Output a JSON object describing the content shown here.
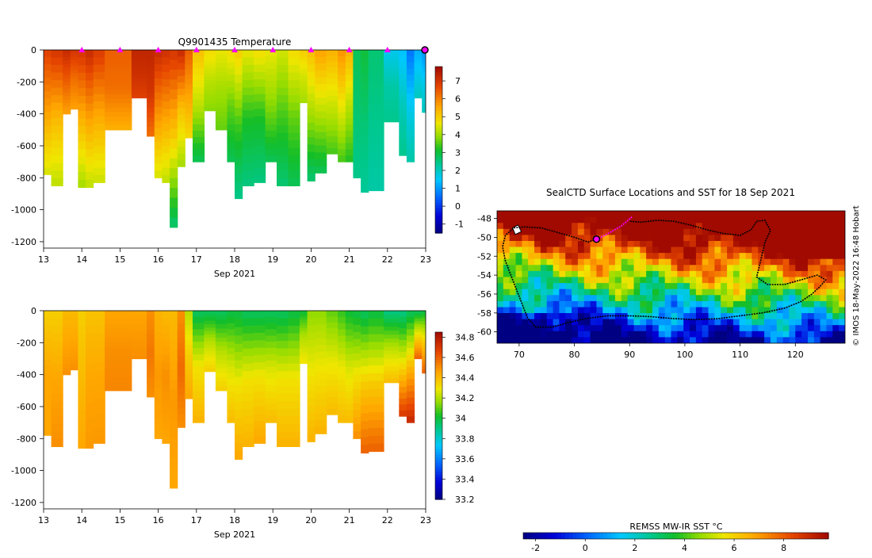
{
  "chart_data": [
    {
      "id": "temperature",
      "type": "heatmap",
      "title": "Q9901435  Temperature",
      "x_ticks": [
        "13",
        "14",
        "15",
        "16",
        "17",
        "18",
        "19",
        "20",
        "21",
        "22",
        "23"
      ],
      "x_label": "Sep 2021",
      "xlim": [
        13,
        23
      ],
      "y_ticks": [
        "0",
        "-200",
        "-400",
        "-600",
        "-800",
        "-1000",
        "-1200"
      ],
      "ylim": [
        -1240,
        0
      ],
      "colorbar": {
        "ticks": [
          "-1",
          "0",
          "1",
          "2",
          "3",
          "4",
          "5",
          "6",
          "7"
        ],
        "range": [
          -1.5,
          7.8
        ]
      },
      "profile_markers": [
        14,
        15,
        16,
        17,
        18,
        19,
        20,
        21,
        22
      ],
      "current_marker": 23,
      "profiles": [
        {
          "x": 13.0,
          "bottom": -780,
          "top_val": 6.8,
          "mid_val": 5.6,
          "bot_val": 4.4
        },
        {
          "x": 13.2,
          "bottom": -850,
          "top_val": 7.0,
          "mid_val": 5.3,
          "bot_val": 4.2
        },
        {
          "x": 13.5,
          "bottom": -400,
          "top_val": 7.2,
          "mid_val": 6.4,
          "bot_val": 5.6
        },
        {
          "x": 13.7,
          "bottom": -370,
          "top_val": 7.0,
          "mid_val": 6.2,
          "bot_val": 5.6
        },
        {
          "x": 13.9,
          "bottom": -860,
          "top_val": 7.0,
          "mid_val": 5.4,
          "bot_val": 4.0
        },
        {
          "x": 14.1,
          "bottom": -860,
          "top_val": 7.2,
          "mid_val": 5.6,
          "bot_val": 4.2
        },
        {
          "x": 14.3,
          "bottom": -830,
          "top_val": 6.9,
          "mid_val": 5.5,
          "bot_val": 4.3
        },
        {
          "x": 14.6,
          "bottom": -500,
          "top_val": 6.4,
          "mid_val": 6.2,
          "bot_val": 5.4
        },
        {
          "x": 15.3,
          "bottom": -300,
          "top_val": 7.3,
          "mid_val": 7.1,
          "bot_val": 6.8
        },
        {
          "x": 15.7,
          "bottom": -540,
          "top_val": 7.3,
          "mid_val": 7.0,
          "bot_val": 6.2
        },
        {
          "x": 15.9,
          "bottom": -800,
          "top_val": 7.2,
          "mid_val": 5.8,
          "bot_val": 4.4
        },
        {
          "x": 16.1,
          "bottom": -830,
          "top_val": 7.1,
          "mid_val": 5.6,
          "bot_val": 4.2
        },
        {
          "x": 16.3,
          "bottom": -1110,
          "top_val": 7.0,
          "mid_val": 5.0,
          "bot_val": 2.6
        },
        {
          "x": 16.5,
          "bottom": -730,
          "top_val": 7.2,
          "mid_val": 5.2,
          "bot_val": 4.0
        },
        {
          "x": 16.7,
          "bottom": -550,
          "top_val": 6.4,
          "mid_val": 5.6,
          "bot_val": 4.8
        },
        {
          "x": 16.9,
          "bottom": -700,
          "top_val": 5.2,
          "mid_val": 4.2,
          "bot_val": 2.8
        },
        {
          "x": 17.2,
          "bottom": -380,
          "top_val": 4.8,
          "mid_val": 4.2,
          "bot_val": 3.8
        },
        {
          "x": 17.5,
          "bottom": -500,
          "top_val": 4.6,
          "mid_val": 4.0,
          "bot_val": 3.6
        },
        {
          "x": 17.8,
          "bottom": -700,
          "top_val": 4.8,
          "mid_val": 3.6,
          "bot_val": 2.8
        },
        {
          "x": 18.0,
          "bottom": -930,
          "top_val": 5.0,
          "mid_val": 3.4,
          "bot_val": 2.4
        },
        {
          "x": 18.2,
          "bottom": -850,
          "top_val": 4.6,
          "mid_val": 3.2,
          "bot_val": 2.5
        },
        {
          "x": 18.5,
          "bottom": -830,
          "top_val": 4.8,
          "mid_val": 3.2,
          "bot_val": 2.5
        },
        {
          "x": 18.8,
          "bottom": -700,
          "top_val": 4.6,
          "mid_val": 3.8,
          "bot_val": 2.8
        },
        {
          "x": 19.1,
          "bottom": -850,
          "top_val": 4.4,
          "mid_val": 3.4,
          "bot_val": 2.6
        },
        {
          "x": 19.4,
          "bottom": -850,
          "top_val": 4.8,
          "mid_val": 3.6,
          "bot_val": 2.8
        },
        {
          "x": 19.7,
          "bottom": -330,
          "top_val": 5.0,
          "mid_val": 4.4,
          "bot_val": 4.0
        },
        {
          "x": 19.9,
          "bottom": -820,
          "top_val": 5.2,
          "mid_val": 4.0,
          "bot_val": 2.6
        },
        {
          "x": 20.1,
          "bottom": -770,
          "top_val": 5.6,
          "mid_val": 4.2,
          "bot_val": 2.8
        },
        {
          "x": 20.4,
          "bottom": -650,
          "top_val": 5.4,
          "mid_val": 4.4,
          "bot_val": 3.4
        },
        {
          "x": 20.7,
          "bottom": -700,
          "top_val": 5.8,
          "mid_val": 4.6,
          "bot_val": 3.4
        },
        {
          "x": 20.9,
          "bottom": -700,
          "top_val": 5.4,
          "mid_val": 4.2,
          "bot_val": 3.2
        },
        {
          "x": 21.1,
          "bottom": -800,
          "top_val": 2.8,
          "mid_val": 2.6,
          "bot_val": 2.4
        },
        {
          "x": 21.3,
          "bottom": -890,
          "top_val": 3.0,
          "mid_val": 2.6,
          "bot_val": 2.3
        },
        {
          "x": 21.5,
          "bottom": -880,
          "top_val": 2.6,
          "mid_val": 2.4,
          "bot_val": 2.2
        },
        {
          "x": 21.9,
          "bottom": -450,
          "top_val": 1.6,
          "mid_val": 2.2,
          "bot_val": 2.4
        },
        {
          "x": 22.3,
          "bottom": -660,
          "top_val": 1.4,
          "mid_val": 2.0,
          "bot_val": 2.4
        },
        {
          "x": 22.5,
          "bottom": -700,
          "top_val": 0.6,
          "mid_val": 1.6,
          "bot_val": 2.2
        },
        {
          "x": 22.7,
          "bottom": -300,
          "top_val": 1.2,
          "mid_val": 1.6,
          "bot_val": 2.0
        },
        {
          "x": 22.9,
          "bottom": -390,
          "top_val": 0.9,
          "mid_val": 1.6,
          "bot_val": 2.0
        }
      ]
    },
    {
      "id": "salinity",
      "type": "heatmap",
      "title": "",
      "x_ticks": [
        "13",
        "14",
        "15",
        "16",
        "17",
        "18",
        "19",
        "20",
        "21",
        "22",
        "23"
      ],
      "x_label": "Sep 2021",
      "xlim": [
        13,
        23
      ],
      "y_ticks": [
        "0",
        "-200",
        "-400",
        "-600",
        "-800",
        "-1000",
        "-1200"
      ],
      "ylim": [
        -1240,
        0
      ],
      "colorbar": {
        "ticks": [
          "33.2",
          "33.4",
          "33.6",
          "33.8",
          "34",
          "34.2",
          "34.4",
          "34.6",
          "34.8"
        ],
        "range": [
          33.2,
          34.85
        ]
      },
      "profiles": [
        {
          "x": 13.0,
          "bottom": -780,
          "top_val": 34.35,
          "mid_val": 34.45,
          "bot_val": 34.45
        },
        {
          "x": 13.2,
          "bottom": -850,
          "top_val": 34.35,
          "mid_val": 34.45,
          "bot_val": 34.5
        },
        {
          "x": 13.5,
          "bottom": -400,
          "top_val": 34.4,
          "mid_val": 34.45,
          "bot_val": 34.5
        },
        {
          "x": 13.7,
          "bottom": -370,
          "top_val": 34.4,
          "mid_val": 34.45,
          "bot_val": 34.5
        },
        {
          "x": 13.9,
          "bottom": -860,
          "top_val": 34.35,
          "mid_val": 34.4,
          "bot_val": 34.45
        },
        {
          "x": 14.1,
          "bottom": -860,
          "top_val": 34.38,
          "mid_val": 34.45,
          "bot_val": 34.48
        },
        {
          "x": 14.3,
          "bottom": -830,
          "top_val": 34.38,
          "mid_val": 34.45,
          "bot_val": 34.48
        },
        {
          "x": 14.6,
          "bottom": -500,
          "top_val": 34.45,
          "mid_val": 34.5,
          "bot_val": 34.52
        },
        {
          "x": 15.3,
          "bottom": -300,
          "top_val": 34.45,
          "mid_val": 34.48,
          "bot_val": 34.5
        },
        {
          "x": 15.7,
          "bottom": -540,
          "top_val": 34.5,
          "mid_val": 34.55,
          "bot_val": 34.5
        },
        {
          "x": 15.9,
          "bottom": -800,
          "top_val": 34.42,
          "mid_val": 34.48,
          "bot_val": 34.45
        },
        {
          "x": 16.1,
          "bottom": -830,
          "top_val": 34.4,
          "mid_val": 34.5,
          "bot_val": 34.45
        },
        {
          "x": 16.3,
          "bottom": -1110,
          "top_val": 34.4,
          "mid_val": 34.48,
          "bot_val": 34.45
        },
        {
          "x": 16.5,
          "bottom": -730,
          "top_val": 34.5,
          "mid_val": 34.58,
          "bot_val": 34.5
        },
        {
          "x": 16.7,
          "bottom": -550,
          "top_val": 34.2,
          "mid_val": 34.35,
          "bot_val": 34.45
        },
        {
          "x": 16.9,
          "bottom": -700,
          "top_val": 33.95,
          "mid_val": 34.3,
          "bot_val": 34.42
        },
        {
          "x": 17.2,
          "bottom": -380,
          "top_val": 33.95,
          "mid_val": 34.2,
          "bot_val": 34.35
        },
        {
          "x": 17.5,
          "bottom": -500,
          "top_val": 33.95,
          "mid_val": 34.2,
          "bot_val": 34.35
        },
        {
          "x": 17.8,
          "bottom": -700,
          "top_val": 33.98,
          "mid_val": 34.25,
          "bot_val": 34.4
        },
        {
          "x": 18.0,
          "bottom": -930,
          "top_val": 33.98,
          "mid_val": 34.3,
          "bot_val": 34.45
        },
        {
          "x": 18.2,
          "bottom": -850,
          "top_val": 33.95,
          "mid_val": 34.3,
          "bot_val": 34.42
        },
        {
          "x": 18.5,
          "bottom": -830,
          "top_val": 33.95,
          "mid_val": 34.3,
          "bot_val": 34.45
        },
        {
          "x": 18.8,
          "bottom": -700,
          "top_val": 33.95,
          "mid_val": 34.25,
          "bot_val": 34.4
        },
        {
          "x": 19.1,
          "bottom": -850,
          "top_val": 33.95,
          "mid_val": 34.3,
          "bot_val": 34.42
        },
        {
          "x": 19.4,
          "bottom": -850,
          "top_val": 33.98,
          "mid_val": 34.3,
          "bot_val": 34.42
        },
        {
          "x": 19.7,
          "bottom": -330,
          "top_val": 34.0,
          "mid_val": 34.2,
          "bot_val": 34.3
        },
        {
          "x": 19.9,
          "bottom": -820,
          "top_val": 34.15,
          "mid_val": 34.3,
          "bot_val": 34.42
        },
        {
          "x": 20.1,
          "bottom": -770,
          "top_val": 34.15,
          "mid_val": 34.3,
          "bot_val": 34.42
        },
        {
          "x": 20.4,
          "bottom": -650,
          "top_val": 34.1,
          "mid_val": 34.28,
          "bot_val": 34.4
        },
        {
          "x": 20.7,
          "bottom": -700,
          "top_val": 34.05,
          "mid_val": 34.28,
          "bot_val": 34.4
        },
        {
          "x": 20.9,
          "bottom": -700,
          "top_val": 34.0,
          "mid_val": 34.25,
          "bot_val": 34.4
        },
        {
          "x": 21.1,
          "bottom": -800,
          "top_val": 33.98,
          "mid_val": 34.3,
          "bot_val": 34.5
        },
        {
          "x": 21.3,
          "bottom": -890,
          "top_val": 33.95,
          "mid_val": 34.35,
          "bot_val": 34.6
        },
        {
          "x": 21.5,
          "bottom": -880,
          "top_val": 33.98,
          "mid_val": 34.35,
          "bot_val": 34.6
        },
        {
          "x": 21.9,
          "bottom": -450,
          "top_val": 33.9,
          "mid_val": 34.2,
          "bot_val": 34.4
        },
        {
          "x": 22.3,
          "bottom": -660,
          "top_val": 33.9,
          "mid_val": 34.3,
          "bot_val": 34.7
        },
        {
          "x": 22.5,
          "bottom": -700,
          "top_val": 33.95,
          "mid_val": 34.4,
          "bot_val": 34.75
        },
        {
          "x": 22.7,
          "bottom": -300,
          "top_val": 33.95,
          "mid_val": 34.3,
          "bot_val": 34.6
        },
        {
          "x": 22.9,
          "bottom": -390,
          "top_val": 33.98,
          "mid_val": 34.35,
          "bot_val": 34.6
        }
      ]
    },
    {
      "id": "sst-map",
      "type": "heatmap",
      "title": "SealCTD Surface Locations and SST for 18 Sep 2021",
      "x_ticks": [
        "70",
        "80",
        "90",
        "100",
        "110",
        "120"
      ],
      "xlim": [
        66,
        129
      ],
      "y_ticks": [
        "-48",
        "-50",
        "-52",
        "-54",
        "-56",
        "-58",
        "-60"
      ],
      "ylim": [
        -61.2,
        -47.2
      ],
      "colorbar": {
        "label": "REMSS MW-IR SST °C",
        "ticks": [
          "-2",
          "0",
          "2",
          "4",
          "6",
          "8"
        ],
        "range": [
          -2.5,
          9.8
        ]
      },
      "side_note": "© IMOS 18-May-2022 16:48 Hobart",
      "track": [
        [
          84,
          -50.2
        ],
        [
          82.5,
          -50.5
        ],
        [
          80,
          -50
        ],
        [
          77,
          -49.5
        ],
        [
          74,
          -49
        ],
        [
          71,
          -48.9
        ],
        [
          69,
          -49
        ],
        [
          67.5,
          -49.8
        ],
        [
          67,
          -51
        ],
        [
          67.5,
          -52.5
        ],
        [
          68.5,
          -54
        ],
        [
          69.5,
          -55.5
        ],
        [
          70.5,
          -57
        ],
        [
          71.5,
          -58.5
        ],
        [
          73,
          -59.5
        ],
        [
          76,
          -59.5
        ],
        [
          79,
          -59
        ],
        [
          82,
          -58.6
        ],
        [
          86,
          -58.3
        ],
        [
          90,
          -58.3
        ],
        [
          94,
          -58.4
        ],
        [
          98,
          -58.6
        ],
        [
          102,
          -58.7
        ],
        [
          106,
          -58.6
        ],
        [
          110,
          -58.3
        ],
        [
          114,
          -58
        ],
        [
          118,
          -57.5
        ],
        [
          121,
          -56.8
        ],
        [
          123,
          -56
        ],
        [
          124.5,
          -55.2
        ],
        [
          125.5,
          -54.5
        ],
        [
          124,
          -54
        ],
        [
          121,
          -54.5
        ],
        [
          118,
          -55
        ],
        [
          115,
          -55
        ],
        [
          113,
          -54.2
        ],
        [
          113.5,
          -53
        ],
        [
          114,
          -51.8
        ],
        [
          114.5,
          -50.5
        ],
        [
          115.5,
          -49.3
        ],
        [
          114.5,
          -48.2
        ],
        [
          113,
          -48.3
        ],
        [
          112,
          -49.2
        ],
        [
          110,
          -49.8
        ],
        [
          107,
          -49.6
        ],
        [
          104,
          -49.2
        ],
        [
          101,
          -48.7
        ],
        [
          98,
          -48.3
        ],
        [
          95,
          -48.2
        ],
        [
          92,
          -48.4
        ],
        [
          90,
          -48.3
        ]
      ],
      "recent_track": [
        [
          84,
          -50.2
        ],
        [
          85.5,
          -49.8
        ],
        [
          87,
          -49.3
        ],
        [
          88.5,
          -48.8
        ],
        [
          89.5,
          -48.3
        ],
        [
          90.5,
          -47.8
        ]
      ],
      "current_position": [
        84,
        -50.2
      ]
    }
  ]
}
